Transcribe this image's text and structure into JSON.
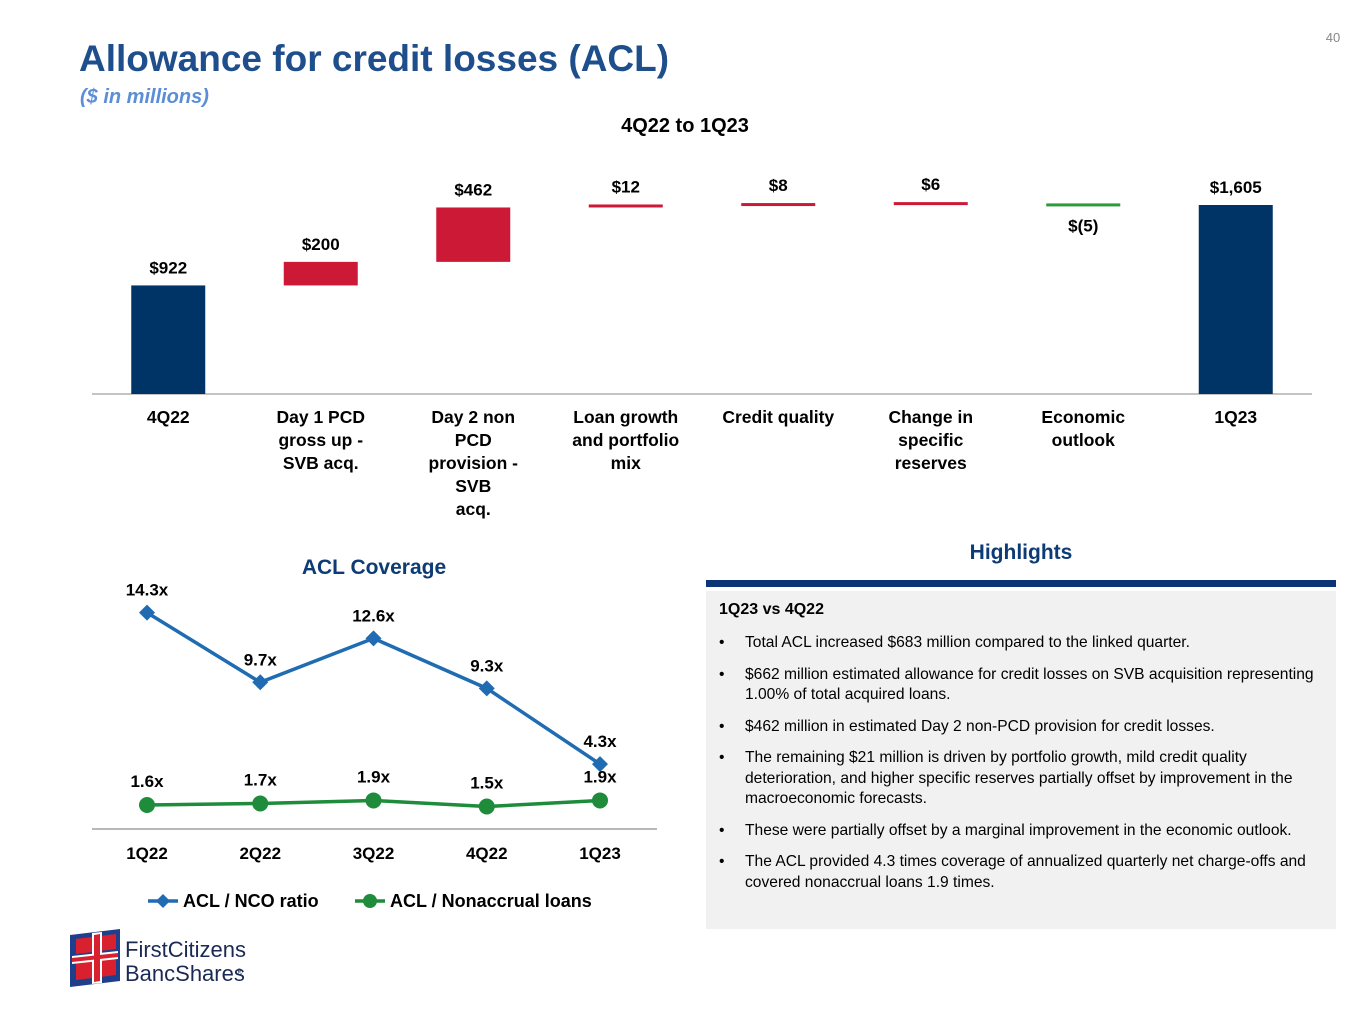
{
  "header": {
    "title": "Allowance for credit losses (ACL)",
    "subtitle": "($ in millions)",
    "page_number": "40"
  },
  "colors": {
    "navy": "#003366",
    "red": "#cc1a36",
    "green": "#2e9a3a",
    "blue_line": "#1f6cb3",
    "green_line": "#1e8c3a",
    "title_blue": "#1f4e8c"
  },
  "chart_data": [
    {
      "type": "bar",
      "subtype": "waterfall",
      "title": "4Q22 to 1Q23",
      "categories": [
        "4Q22",
        "Day 1 PCD\ngross up -\nSVB acq.",
        "Day 2 non\nPCD\nprovision -\nSVB\nacq.",
        "Loan growth\nand portfolio\nmix",
        "Credit quality",
        "Change in\nspecific\nreserves",
        "Economic\noutlook",
        "1Q23"
      ],
      "values": [
        922,
        200,
        462,
        12,
        8,
        6,
        -5,
        1605
      ],
      "labels": [
        "$922",
        "$200",
        "$462",
        "$12",
        "$8",
        "$6",
        "$(5)",
        "$1,605"
      ],
      "kinds": [
        "total",
        "increase",
        "increase",
        "increase",
        "increase",
        "increase",
        "decrease",
        "total"
      ]
    },
    {
      "type": "line",
      "title": "ACL Coverage",
      "categories": [
        "1Q22",
        "2Q22",
        "3Q22",
        "4Q22",
        "1Q23"
      ],
      "series": [
        {
          "name": "ACL / NCO ratio",
          "values": [
            14.3,
            9.7,
            12.6,
            9.3,
            4.3
          ],
          "labels": [
            "14.3x",
            "9.7x",
            "12.6x",
            "9.3x",
            "4.3x"
          ],
          "marker": "diamond"
        },
        {
          "name": "ACL / Nonaccrual loans",
          "values": [
            1.6,
            1.7,
            1.9,
            1.5,
            1.9
          ],
          "labels": [
            "1.6x",
            "1.7x",
            "1.9x",
            "1.5x",
            "1.9x"
          ],
          "marker": "circle"
        }
      ],
      "legend": "bottom"
    }
  ],
  "highlights": {
    "heading": "Highlights",
    "subheading": "1Q23 vs 4Q22",
    "bullets": [
      "Total ACL increased $683 million compared to the linked quarter.",
      "$662 million estimated allowance for credit losses on SVB acquisition representing 1.00% of total acquired loans.",
      "$462 million in estimated Day 2 non-PCD provision for credit losses.",
      "The remaining $21 million is driven by portfolio growth, mild credit quality deterioration, and higher specific reserves partially offset by improvement in the macroeconomic forecasts.",
      "These were partially offset by a marginal improvement in the economic outlook.",
      "The ACL provided 4.3 times coverage of annualized quarterly net charge-offs and covered nonaccrual loans 1.9 times."
    ]
  },
  "logo": {
    "line1": "FirstCitizens",
    "line2": "BancShares",
    "registered": "®",
    "icon": "flag-icon"
  }
}
